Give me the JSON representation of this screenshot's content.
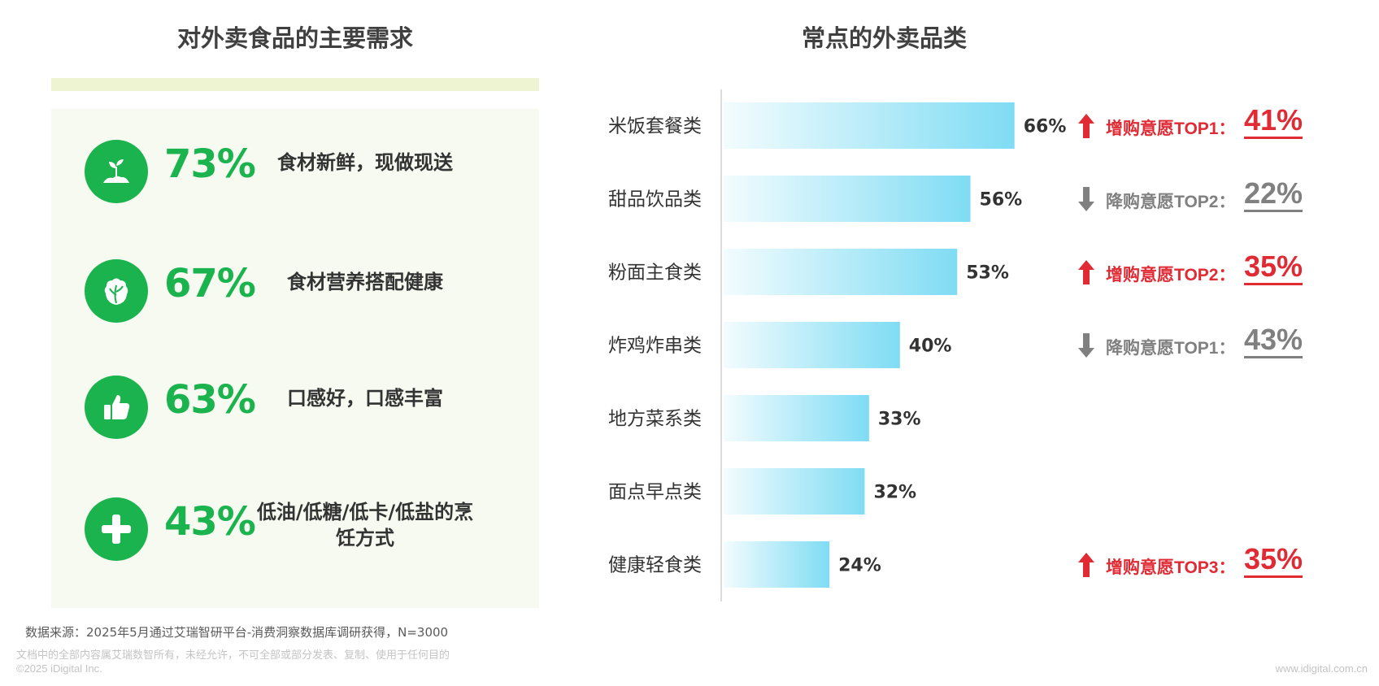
{
  "left": {
    "title": "对外卖食品的主要需求",
    "needs": [
      {
        "icon": "sprout-icon",
        "percent": "73%",
        "text": "食材新鲜，现做现送"
      },
      {
        "icon": "lettuce-icon",
        "percent": "67%",
        "text": "食材营养搭配健康"
      },
      {
        "icon": "thumbs-up-icon",
        "percent": "63%",
        "text": "口感好，口感丰富"
      },
      {
        "icon": "plus-icon",
        "percent": "43%",
        "text": "低油/低糖/低卡/低盐的烹饪方式"
      }
    ],
    "accent": "#1ab34e"
  },
  "chart_data": {
    "type": "bar",
    "orientation": "horizontal",
    "title": "常点的外卖品类",
    "categories": [
      "米饭套餐类",
      "甜品饮品类",
      "粉面主食类",
      "炸鸡炸串类",
      "地方菜系类",
      "面点早点类",
      "健康轻食类"
    ],
    "values": [
      66,
      56,
      53,
      40,
      33,
      32,
      24
    ],
    "value_labels": [
      "66%",
      "56%",
      "53%",
      "40%",
      "33%",
      "32%",
      "24%"
    ],
    "unit": "%",
    "xlim": [
      0,
      100
    ],
    "bar_gradient": [
      "#f3fcfe",
      "#7fdcf4"
    ],
    "annotations": [
      {
        "category": "米饭套餐类",
        "direction": "up",
        "label": "增购意愿TOP1：",
        "value": "41%"
      },
      {
        "category": "甜品饮品类",
        "direction": "down",
        "label": "降购意愿TOP2：",
        "value": "22%"
      },
      {
        "category": "粉面主食类",
        "direction": "up",
        "label": "增购意愿TOP2：",
        "value": "35%"
      },
      {
        "category": "炸鸡炸串类",
        "direction": "down",
        "label": "降购意愿TOP1：",
        "value": "43%"
      },
      {
        "category": "健康轻食类",
        "direction": "up",
        "label": "增购意愿TOP3：",
        "value": "35%"
      }
    ],
    "colors": {
      "up": "#e02b35",
      "down": "#808080"
    }
  },
  "footer": {
    "source": "数据来源：2025年5月通过艾瑞智研平台-消费洞察数据库调研获得，N=3000",
    "disclaimer": "文档中的全部内容属艾瑞数智所有，未经允许，不可全部或部分发表、复制、使用于任何目的",
    "copyright": "©2025 iDigital Inc.",
    "website": "www.idigital.com.cn"
  }
}
